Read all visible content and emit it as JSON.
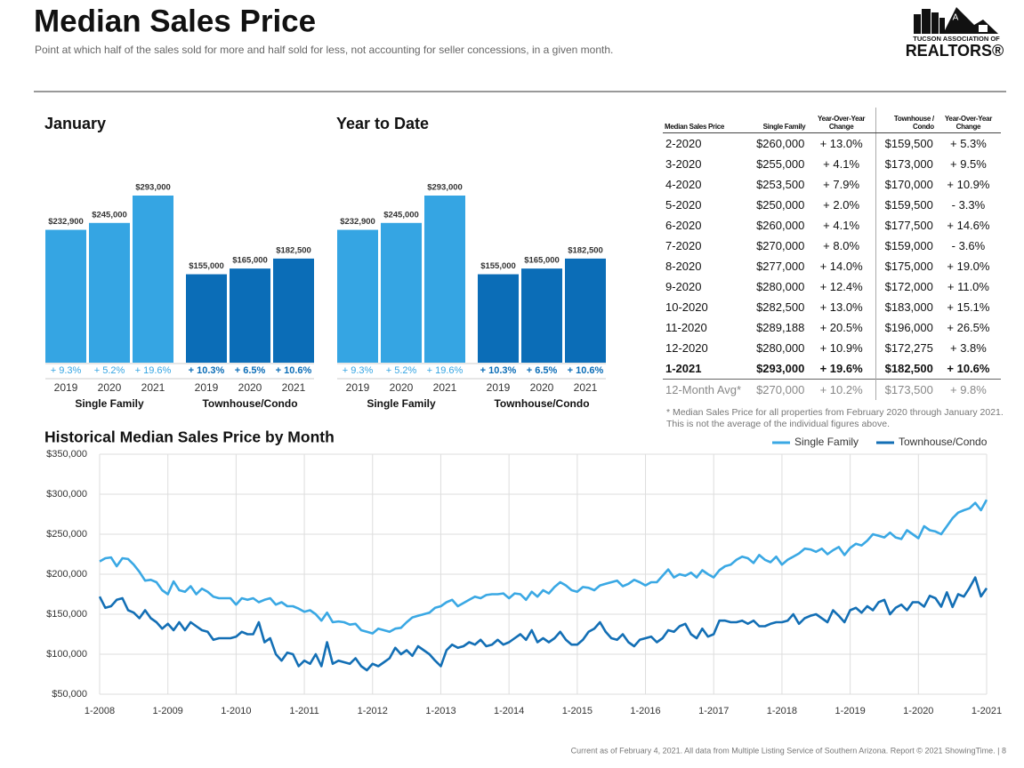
{
  "header": {
    "title": "Median Sales Price",
    "subtitle": "Point at which half of the sales sold for more and half sold for less, not accounting for seller concessions, in a given month.",
    "logo_line1": "TUCSON ASSOCIATION OF",
    "logo_line2": "REALTORS®"
  },
  "chart_data": [
    {
      "type": "bar",
      "title": "January",
      "groups": [
        {
          "name": "Single Family",
          "color": "#35a5e3",
          "categories": [
            "2019",
            "2020",
            "2021"
          ],
          "values": [
            232900,
            245000,
            293000
          ],
          "value_labels": [
            "$232,900",
            "$245,000",
            "$293,000"
          ],
          "change_labels": [
            "+ 9.3%",
            "+ 5.2%",
            "+ 19.6%"
          ]
        },
        {
          "name": "Townhouse/Condo",
          "color": "#0b6db7",
          "categories": [
            "2019",
            "2020",
            "2021"
          ],
          "values": [
            155000,
            165000,
            182500
          ],
          "value_labels": [
            "$155,000",
            "$165,000",
            "$182,500"
          ],
          "change_labels": [
            "+ 10.3%",
            "+ 6.5%",
            "+ 10.6%"
          ]
        }
      ]
    },
    {
      "type": "bar",
      "title": "Year to Date",
      "groups": [
        {
          "name": "Single Family",
          "color": "#35a5e3",
          "categories": [
            "2019",
            "2020",
            "2021"
          ],
          "values": [
            232900,
            245000,
            293000
          ],
          "value_labels": [
            "$232,900",
            "$245,000",
            "$293,000"
          ],
          "change_labels": [
            "+ 9.3%",
            "+ 5.2%",
            "+ 19.6%"
          ]
        },
        {
          "name": "Townhouse/Condo",
          "color": "#0b6db7",
          "categories": [
            "2019",
            "2020",
            "2021"
          ],
          "values": [
            155000,
            165000,
            182500
          ],
          "value_labels": [
            "$155,000",
            "$165,000",
            "$182,500"
          ],
          "change_labels": [
            "+ 10.3%",
            "+ 6.5%",
            "+ 10.6%"
          ]
        }
      ]
    },
    {
      "type": "line",
      "title": "Historical Median Sales Price by Month",
      "categories": [
        "1-2008",
        null,
        null,
        null,
        null,
        null,
        null,
        null,
        null,
        null,
        null,
        null,
        "1-2009",
        null,
        null,
        null,
        null,
        null,
        null,
        null,
        null,
        null,
        null,
        null,
        "1-2010",
        null,
        null,
        null,
        null,
        null,
        null,
        null,
        null,
        null,
        null,
        null,
        "1-2011",
        null,
        null,
        null,
        null,
        null,
        null,
        null,
        null,
        null,
        null,
        null,
        "1-2012",
        null,
        null,
        null,
        null,
        null,
        null,
        null,
        null,
        null,
        null,
        null,
        "1-2013",
        null,
        null,
        null,
        null,
        null,
        null,
        null,
        null,
        null,
        null,
        null,
        "1-2014",
        null,
        null,
        null,
        null,
        null,
        null,
        null,
        null,
        null,
        null,
        null,
        "1-2015",
        null,
        null,
        null,
        null,
        null,
        null,
        null,
        null,
        null,
        null,
        null,
        "1-2016",
        null,
        null,
        null,
        null,
        null,
        null,
        null,
        null,
        null,
        null,
        null,
        "1-2017",
        null,
        null,
        null,
        null,
        null,
        null,
        null,
        null,
        null,
        null,
        null,
        "1-2018",
        null,
        null,
        null,
        null,
        null,
        null,
        null,
        null,
        null,
        null,
        null,
        "1-2019",
        null,
        null,
        null,
        null,
        null,
        null,
        null,
        null,
        null,
        null,
        null,
        "1-2020",
        null,
        null,
        null,
        null,
        null,
        null,
        null,
        null,
        null,
        null,
        null,
        "1-2021"
      ],
      "series": [
        {
          "name": "Single Family",
          "color": "#3aa8e4",
          "values": [
            216000,
            220000,
            221000,
            210000,
            220000,
            219000,
            212000,
            203000,
            192000,
            193000,
            190000,
            180000,
            175000,
            191000,
            180000,
            178000,
            185000,
            175000,
            182000,
            178000,
            172000,
            170000,
            170000,
            170000,
            162000,
            170000,
            168000,
            170000,
            165000,
            168000,
            170000,
            162000,
            165000,
            160000,
            160000,
            157000,
            153000,
            155000,
            150000,
            142000,
            152000,
            140000,
            141000,
            140000,
            137000,
            138000,
            130000,
            128000,
            126000,
            132000,
            130000,
            128000,
            132000,
            133000,
            140000,
            146000,
            148000,
            150000,
            152000,
            158000,
            160000,
            165000,
            168000,
            160000,
            164000,
            168000,
            172000,
            170000,
            174000,
            175000,
            175000,
            176000,
            170000,
            176000,
            175000,
            168000,
            178000,
            172000,
            180000,
            176000,
            184000,
            190000,
            186000,
            180000,
            178000,
            184000,
            183000,
            180000,
            186000,
            188000,
            190000,
            192000,
            185000,
            188000,
            193000,
            190000,
            186000,
            190000,
            190000,
            198000,
            206000,
            196000,
            200000,
            198000,
            202000,
            196000,
            205000,
            200000,
            196000,
            205000,
            210000,
            212000,
            218000,
            222000,
            220000,
            214000,
            224000,
            218000,
            215000,
            222000,
            212000,
            218000,
            222000,
            226000,
            232000,
            231000,
            228000,
            232000,
            225000,
            230000,
            234000,
            224000,
            232900,
            238000,
            236000,
            242000,
            250000,
            248000,
            246000,
            252000,
            246000,
            244000,
            255000,
            250000,
            245000,
            260000,
            255000,
            253500,
            250000,
            260000,
            270000,
            277000,
            280000,
            282500,
            289188,
            280000,
            293000
          ]
        },
        {
          "name": "Townhouse/Condo",
          "color": "#136fb5",
          "values": [
            172000,
            158000,
            160000,
            168000,
            170000,
            155000,
            152000,
            145000,
            155000,
            145000,
            140000,
            132000,
            138000,
            130000,
            140000,
            130000,
            140000,
            135000,
            130000,
            128000,
            118000,
            120000,
            120000,
            120000,
            122000,
            128000,
            125000,
            125000,
            140000,
            115000,
            120000,
            100000,
            92000,
            102000,
            100000,
            85000,
            92000,
            88000,
            100000,
            85000,
            115000,
            88000,
            92000,
            90000,
            88000,
            95000,
            85000,
            80000,
            88000,
            85000,
            90000,
            95000,
            108000,
            100000,
            105000,
            98000,
            110000,
            105000,
            100000,
            92000,
            85000,
            105000,
            112000,
            108000,
            110000,
            115000,
            112000,
            118000,
            110000,
            112000,
            118000,
            112000,
            115000,
            120000,
            125000,
            118000,
            130000,
            115000,
            120000,
            115000,
            120000,
            128000,
            118000,
            112000,
            112000,
            118000,
            128000,
            132000,
            140000,
            128000,
            120000,
            118000,
            125000,
            115000,
            110000,
            118000,
            120000,
            122000,
            115000,
            120000,
            130000,
            128000,
            135000,
            138000,
            125000,
            120000,
            132000,
            122000,
            125000,
            142000,
            142000,
            140000,
            140000,
            142000,
            138000,
            142000,
            135000,
            135000,
            138000,
            140000,
            140000,
            142000,
            150000,
            138000,
            145000,
            148000,
            150000,
            145000,
            140000,
            155000,
            148000,
            140000,
            155000,
            158000,
            152000,
            160000,
            155000,
            165000,
            168000,
            150000,
            158000,
            162000,
            155000,
            165000,
            165000,
            159500,
            173000,
            170000,
            159500,
            177500,
            159000,
            175000,
            172000,
            183000,
            196000,
            172275,
            182500
          ]
        }
      ],
      "ylim": [
        50000,
        350000
      ],
      "yticks": [
        {
          "value": 50000,
          "label": "$50,000"
        },
        {
          "value": 100000,
          "label": "$100,000"
        },
        {
          "value": 150000,
          "label": "$150,000"
        },
        {
          "value": 200000,
          "label": "$200,000"
        },
        {
          "value": 250000,
          "label": "$250,000"
        },
        {
          "value": 300000,
          "label": "$300,000"
        },
        {
          "value": 350000,
          "label": "$350,000"
        }
      ],
      "grid": true,
      "legend": "top-right"
    }
  ],
  "table": {
    "header": [
      "Median Sales Price",
      "Single Family",
      "Year-Over-Year Change",
      "Townhouse / Condo",
      "Year-Over-Year Change"
    ],
    "rows": [
      [
        "2-2020",
        "$260,000",
        "+ 13.0%",
        "$159,500",
        "+ 5.3%"
      ],
      [
        "3-2020",
        "$255,000",
        "+ 4.1%",
        "$173,000",
        "+ 9.5%"
      ],
      [
        "4-2020",
        "$253,500",
        "+ 7.9%",
        "$170,000",
        "+ 10.9%"
      ],
      [
        "5-2020",
        "$250,000",
        "+ 2.0%",
        "$159,500",
        "- 3.3%"
      ],
      [
        "6-2020",
        "$260,000",
        "+ 4.1%",
        "$177,500",
        "+ 14.6%"
      ],
      [
        "7-2020",
        "$270,000",
        "+ 8.0%",
        "$159,000",
        "- 3.6%"
      ],
      [
        "8-2020",
        "$277,000",
        "+ 14.0%",
        "$175,000",
        "+ 19.0%"
      ],
      [
        "9-2020",
        "$280,000",
        "+ 12.4%",
        "$172,000",
        "+ 11.0%"
      ],
      [
        "10-2020",
        "$282,500",
        "+ 13.0%",
        "$183,000",
        "+ 15.1%"
      ],
      [
        "11-2020",
        "$289,188",
        "+ 20.5%",
        "$196,000",
        "+ 26.5%"
      ],
      [
        "12-2020",
        "$280,000",
        "+ 10.9%",
        "$172,275",
        "+ 3.8%"
      ],
      [
        "1-2021",
        "$293,000",
        "+ 19.6%",
        "$182,500",
        "+ 10.6%"
      ]
    ],
    "summary_row": [
      "12-Month Avg*",
      "$270,000",
      "+ 10.2%",
      "$173,500",
      "+ 9.8%"
    ],
    "note": "* Median Sales Price for all properties from February 2020 through January 2021. This is not the average of the individual figures above."
  },
  "footer": "Current as of February 4, 2021. All data from Multiple Listing Service of Southern Arizona. Report © 2021 ShowingTime. | 8"
}
